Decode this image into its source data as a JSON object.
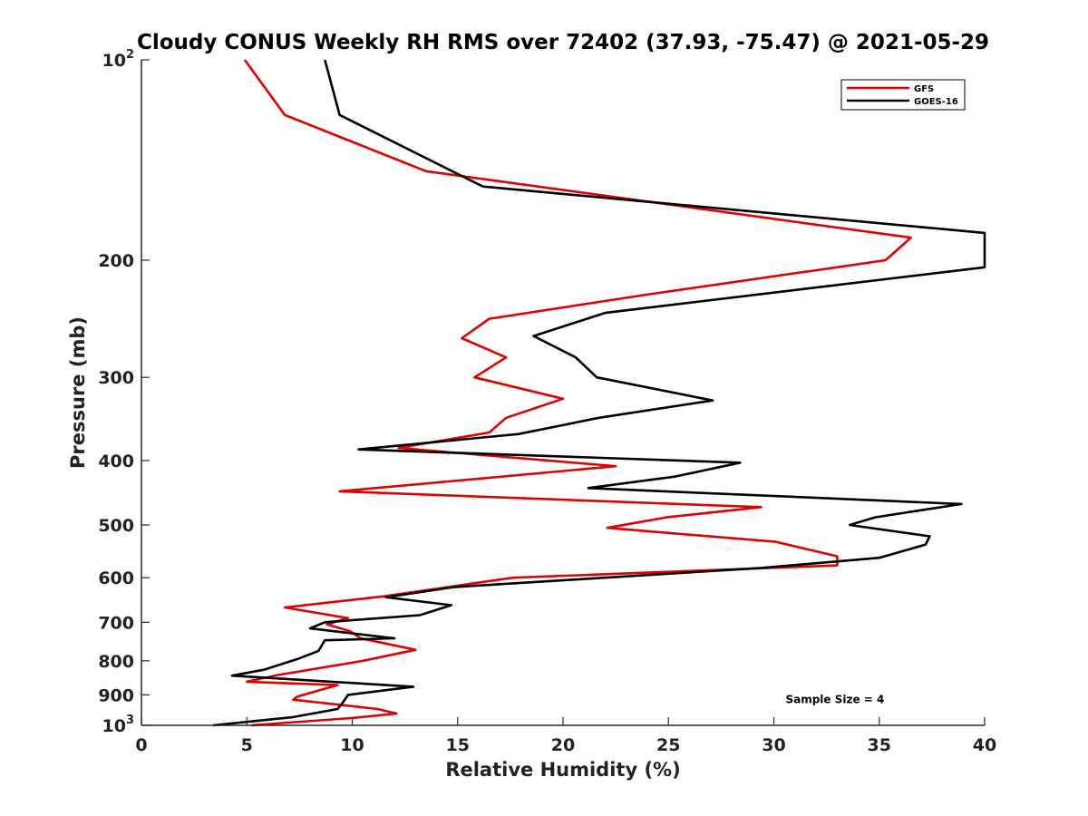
{
  "chart_data": {
    "type": "line",
    "title": "Cloudy CONUS Weekly RH RMS over 72402 (37.93, -75.47) @ 2021-05-29",
    "xlabel": "Relative Humidity (%)",
    "ylabel": "Pressure (mb)",
    "xlim": [
      0,
      40
    ],
    "ylim": [
      100,
      1000
    ],
    "yscale": "log",
    "y_reversed": true,
    "grid": false,
    "legend_position": "top-right",
    "x_ticks": [
      0,
      5,
      10,
      15,
      20,
      25,
      30,
      35,
      40
    ],
    "x_tick_labels": [
      "0",
      "5",
      "10",
      "15",
      "20",
      "25",
      "30",
      "35",
      "40"
    ],
    "y_ticks": [
      {
        "value": 100,
        "base": "10",
        "exp": "2"
      },
      {
        "value": 200,
        "label": "200"
      },
      {
        "value": 300,
        "label": "300"
      },
      {
        "value": 400,
        "label": "400"
      },
      {
        "value": 500,
        "label": "500"
      },
      {
        "value": 600,
        "label": "600"
      },
      {
        "value": 700,
        "label": "700"
      },
      {
        "value": 800,
        "label": "800"
      },
      {
        "value": 900,
        "label": "900"
      },
      {
        "value": 1000,
        "base": "10",
        "exp": "3"
      }
    ],
    "series": [
      {
        "name": "GFS",
        "color": "#e00000",
        "points": [
          [
            4.9,
            100
          ],
          [
            6.8,
            121
          ],
          [
            13.5,
            147
          ],
          [
            36.5,
            185
          ],
          [
            35.3,
            200
          ],
          [
            24.1,
            225
          ],
          [
            16.5,
            245
          ],
          [
            15.2,
            262
          ],
          [
            17.3,
            280
          ],
          [
            15.8,
            300
          ],
          [
            20.0,
            323
          ],
          [
            17.3,
            345
          ],
          [
            16.5,
            363
          ],
          [
            12.2,
            383
          ],
          [
            22.5,
            408
          ],
          [
            9.4,
            445
          ],
          [
            29.4,
            470
          ],
          [
            24.9,
            487
          ],
          [
            22.1,
            505
          ],
          [
            30.1,
            530
          ],
          [
            33.0,
            557
          ],
          [
            33.0,
            575
          ],
          [
            17.6,
            600
          ],
          [
            14.5,
            620
          ],
          [
            11.5,
            640
          ],
          [
            6.8,
            665
          ],
          [
            9.8,
            690
          ],
          [
            8.8,
            705
          ],
          [
            9.9,
            722
          ],
          [
            10.4,
            740
          ],
          [
            13.0,
            770
          ],
          [
            10.5,
            800
          ],
          [
            6.5,
            840
          ],
          [
            5.0,
            860
          ],
          [
            9.3,
            870
          ],
          [
            7.4,
            905
          ],
          [
            7.2,
            915
          ],
          [
            11.2,
            945
          ],
          [
            12.1,
            960
          ],
          [
            10.0,
            975
          ],
          [
            5.2,
            1000
          ]
        ]
      },
      {
        "name": "GOES-16",
        "color": "#000000",
        "points": [
          [
            8.7,
            100
          ],
          [
            9.4,
            121
          ],
          [
            16.2,
            155
          ],
          [
            40.0,
            182
          ],
          [
            40.0,
            205
          ],
          [
            22.0,
            240
          ],
          [
            18.6,
            260
          ],
          [
            20.6,
            280
          ],
          [
            21.6,
            300
          ],
          [
            27.1,
            325
          ],
          [
            21.7,
            345
          ],
          [
            17.9,
            365
          ],
          [
            10.3,
            385
          ],
          [
            28.4,
            403
          ],
          [
            25.3,
            423
          ],
          [
            21.2,
            440
          ],
          [
            38.9,
            465
          ],
          [
            34.8,
            487
          ],
          [
            33.6,
            500
          ],
          [
            37.4,
            520
          ],
          [
            37.2,
            535
          ],
          [
            35.0,
            560
          ],
          [
            29.4,
            580
          ],
          [
            14.8,
            620
          ],
          [
            11.6,
            642
          ],
          [
            14.7,
            660
          ],
          [
            13.2,
            683
          ],
          [
            8.7,
            700
          ],
          [
            8.0,
            715
          ],
          [
            12.0,
            740
          ],
          [
            8.7,
            745
          ],
          [
            8.4,
            773
          ],
          [
            7.4,
            795
          ],
          [
            5.8,
            825
          ],
          [
            4.3,
            842
          ],
          [
            12.9,
            875
          ],
          [
            9.8,
            900
          ],
          [
            9.6,
            920
          ],
          [
            9.3,
            945
          ],
          [
            7.2,
            972
          ],
          [
            3.4,
            1000
          ]
        ]
      }
    ],
    "annotations": [
      {
        "text": "Sample Size = 4",
        "x": 32.9,
        "y": 915
      }
    ]
  }
}
